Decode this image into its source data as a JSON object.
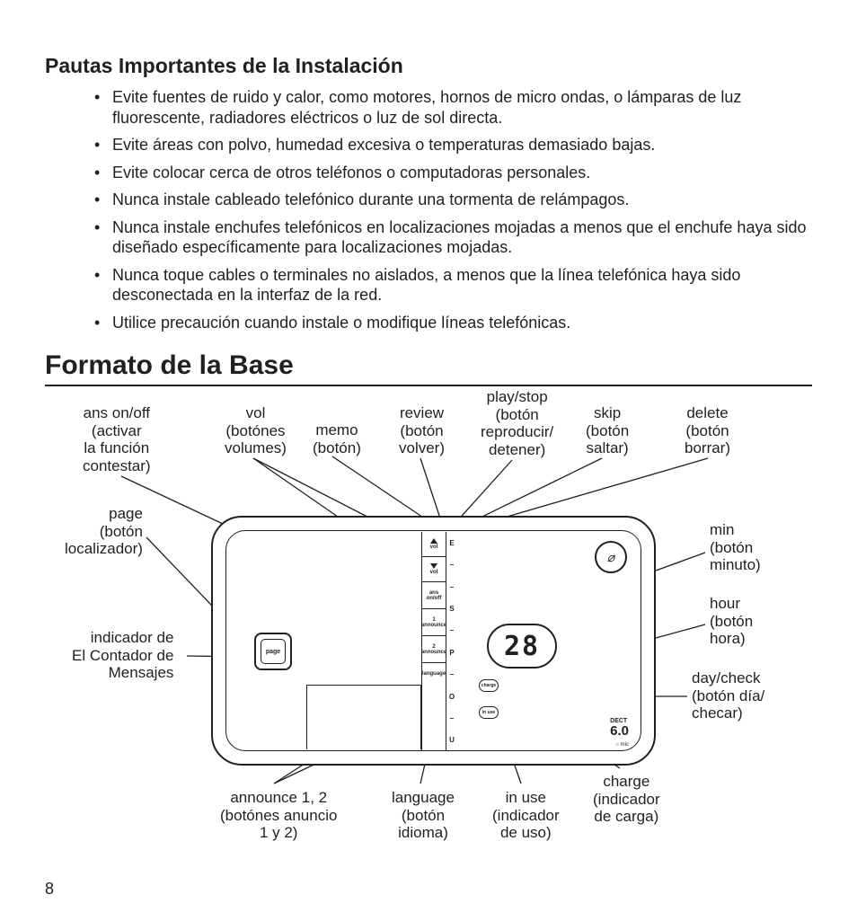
{
  "page_number": "8",
  "heading_guidelines": "Pautas Importantes de la Instalación",
  "bullets": [
    "Evite fuentes de ruido y calor, como motores, hornos de micro ondas, o lámparas de luz fluorescente, radiadores eléctricos o luz de sol directa.",
    "Evite áreas con polvo, humedad excesiva o temperaturas demasiado bajas.",
    "Evite colocar cerca de otros teléfonos o computadoras personales.",
    "Nunca instale cableado telefónico durante una tormenta de relámpagos.",
    "Nunca instale enchufes telefónicos en localizaciones mojadas a menos que el enchufe haya sido diseñado específicamente para localizaciones mojadas.",
    "Nunca toque cables o terminales no aislados, a menos que la línea telefónica haya sido desconectada en la interfaz de la red.",
    "Utilice precaución cuando instale o modifique líneas telefónicas."
  ],
  "heading_layout": "Formato de la Base",
  "display_value": "28",
  "dect_label_top": "DECT",
  "dect_label_big": "6.0",
  "mic_label": "○ mic",
  "page_btn_text": "page",
  "led_charge": "charge",
  "led_inuse": "in use",
  "center_buttons": {
    "vol": "vol",
    "ans": "ans\non/off",
    "ann1": "1\nannounce",
    "ann2": "2\nannounce",
    "lang": "language"
  },
  "side_letters": [
    "E",
    "–",
    "–",
    "S",
    "–",
    "P",
    "–",
    "O",
    "–",
    "U"
  ],
  "callouts": {
    "ans_onoff": "ans on/off\n(activar\nla función\ncontestar)",
    "vol": "vol\n(botónes\nvolumes)",
    "memo": "memo\n(botón)",
    "review": "review\n(botón\nvolver)",
    "playstop": "play/stop\n(botón\nreproducir/\ndetener)",
    "skip": "skip\n(botón\nsaltar)",
    "delete": "delete\n(botón\nborrar)",
    "page": "page\n(botón\nlocalizador)",
    "min": "min\n(botón\nminuto)",
    "hour": "hour\n(botón\nhora)",
    "daycheck": "day/check\n(botón día/\nchecar)",
    "msgcounter": "indicador de\nEl Contador de\nMensajes",
    "announce12": "announce 1, 2\n(botónes anuncio\n1 y 2)",
    "language": "language\n(botón\nidioma)",
    "inuse": "in use\n(indicador\nde uso)",
    "charge": "charge\n(indicador\nde carga)"
  },
  "colors": {
    "text": "#231f20",
    "background": "#ffffff"
  }
}
